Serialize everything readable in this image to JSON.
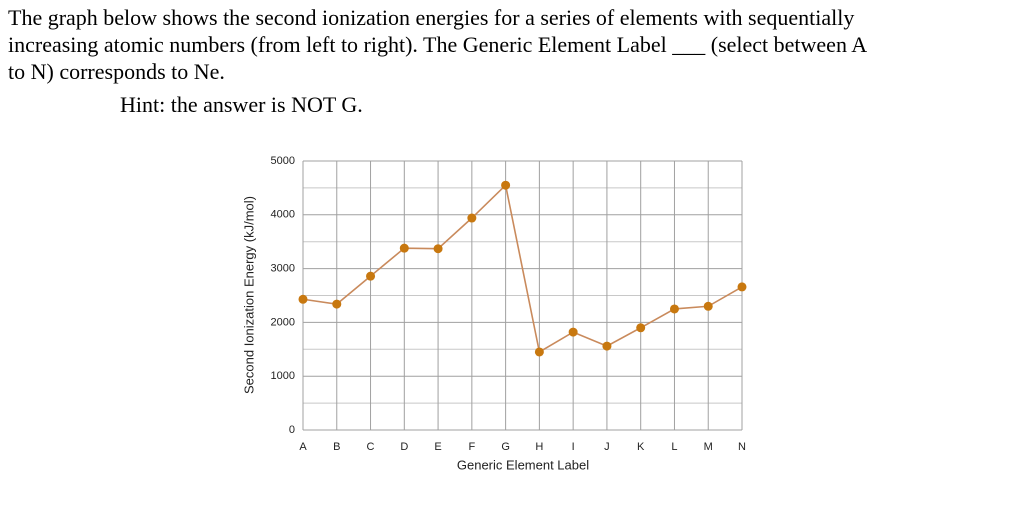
{
  "question_lines": [
    "The graph below shows the second ionization energies for a series of elements with sequentially",
    "increasing atomic numbers (from left to right). The Generic Element Label ___ (select between A",
    "to N) corresponds to Ne."
  ],
  "hint": "Hint: the answer is NOT G.",
  "chart_data": {
    "type": "line",
    "x_label": "Generic Element Label",
    "y_label": "Second Ionization Energy (kJ/mol)",
    "categories": [
      "A",
      "B",
      "C",
      "D",
      "E",
      "F",
      "G",
      "H",
      "I",
      "J",
      "K",
      "L",
      "M",
      "N"
    ],
    "values": [
      2430,
      2340,
      2860,
      3380,
      3370,
      3940,
      4550,
      1450,
      1820,
      1560,
      1900,
      2250,
      2300,
      2660
    ],
    "line_color": "#c98a5c",
    "marker_color": "#c8780f",
    "ylim": [
      0,
      5000
    ],
    "yticks": [
      0,
      1000,
      2000,
      3000,
      4000,
      5000
    ],
    "minor_grid": [
      500,
      1500,
      2500,
      3500,
      4500
    ],
    "grid": true
  }
}
